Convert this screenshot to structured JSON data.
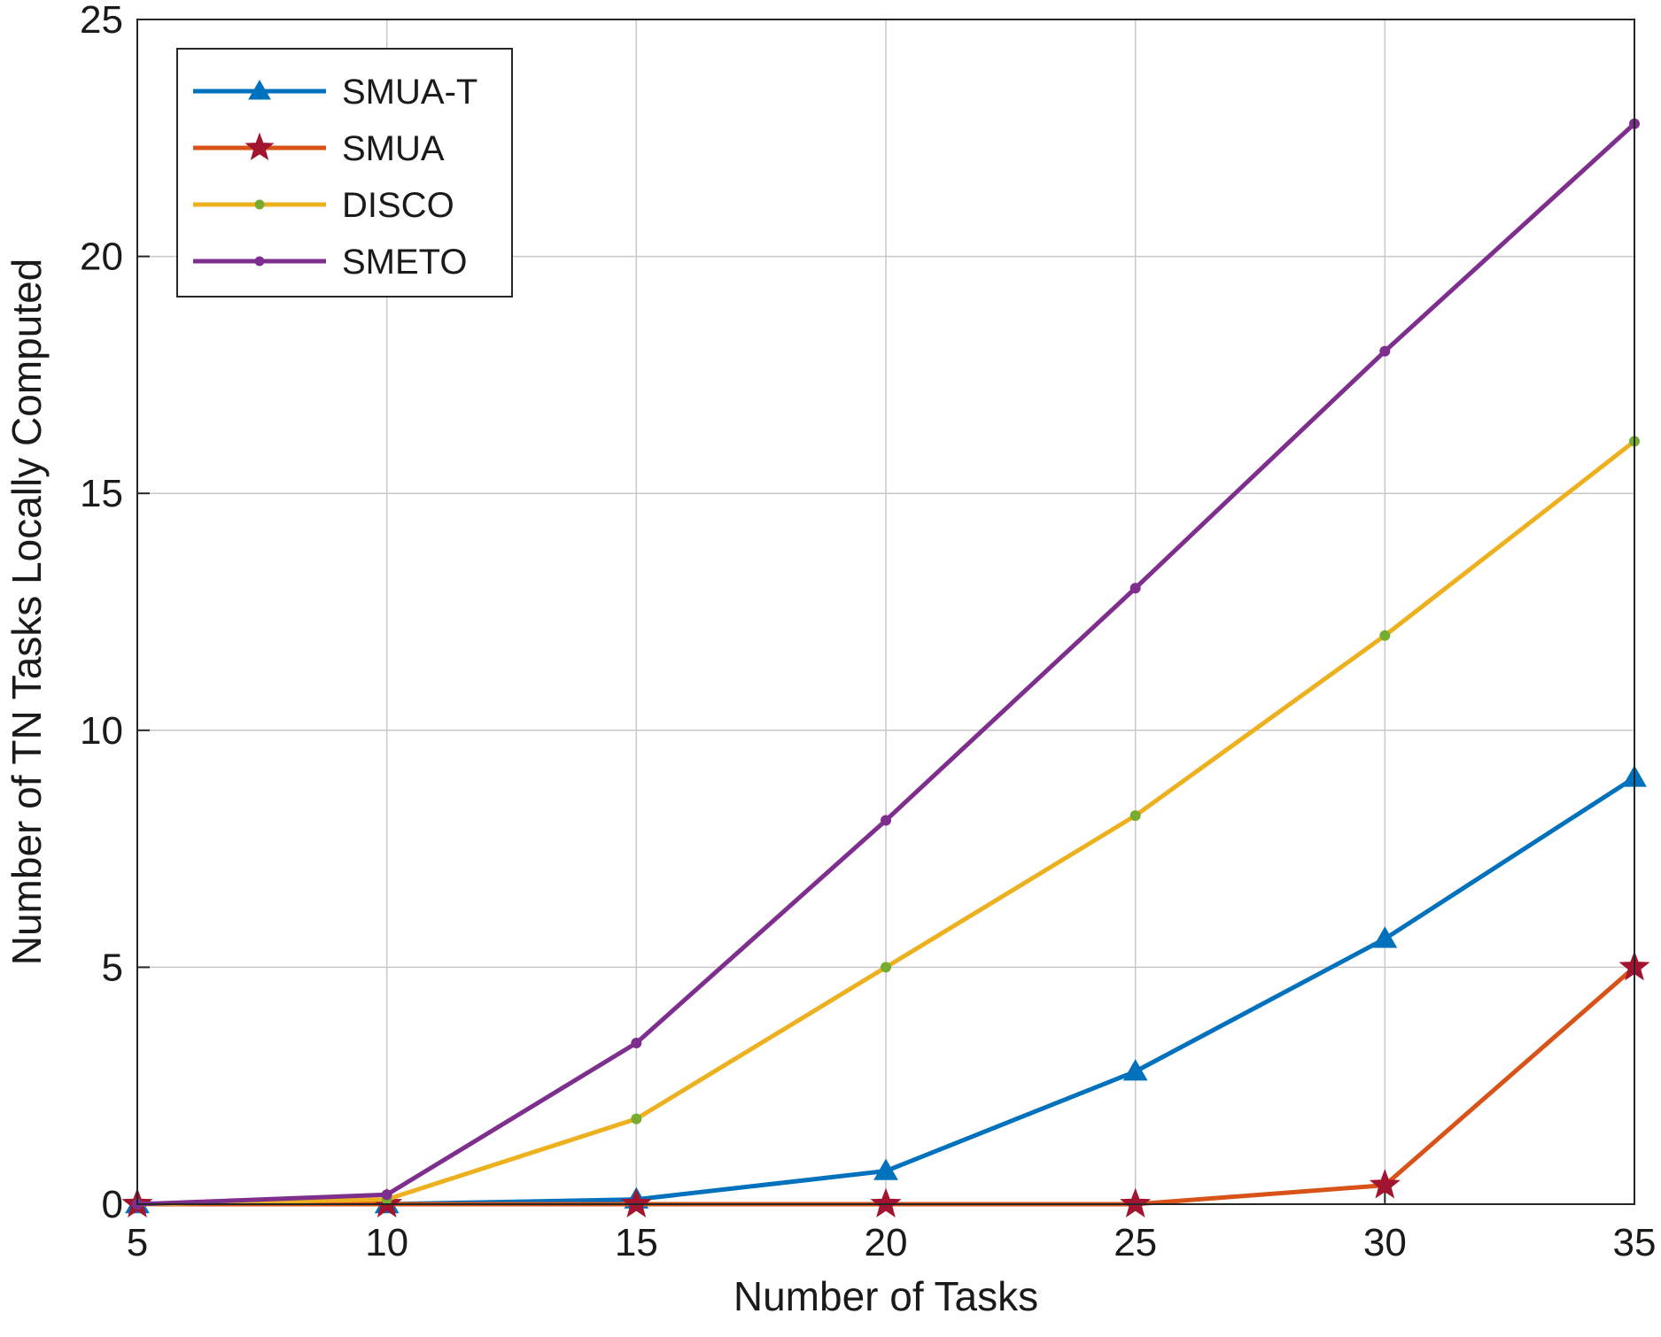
{
  "chart_data": {
    "type": "line",
    "title": "",
    "xlabel": "Number of Tasks",
    "ylabel": "Number of TN Tasks Locally Computed",
    "x": [
      5,
      10,
      15,
      20,
      25,
      30,
      35
    ],
    "xticks": [
      "5",
      "10",
      "15",
      "20",
      "25",
      "30",
      "35"
    ],
    "yticks": [
      "0",
      "5",
      "10",
      "15",
      "20",
      "25"
    ],
    "xlim": [
      5,
      35
    ],
    "ylim": [
      0,
      25
    ],
    "grid": true,
    "legend_position": "top-left",
    "series": [
      {
        "name": "SMUA-T",
        "color": "#0072BD",
        "marker": "triangle",
        "values": [
          0,
          0,
          0.1,
          0.7,
          2.8,
          5.6,
          9.0
        ]
      },
      {
        "name": "SMUA",
        "color": "#D95319",
        "marker_color": "#A2142F",
        "marker": "star",
        "values": [
          0,
          0,
          0,
          0,
          0,
          0.4,
          5.0
        ]
      },
      {
        "name": "DISCO",
        "color": "#EDB120",
        "marker_color": "#77AC30",
        "marker": "dot",
        "values": [
          0,
          0.1,
          1.8,
          5.0,
          8.2,
          12.0,
          16.1
        ]
      },
      {
        "name": "SMETO",
        "color": "#7E2F8E",
        "marker": "dot",
        "values": [
          0,
          0.2,
          3.4,
          8.1,
          13.0,
          18.0,
          22.8
        ]
      }
    ]
  }
}
